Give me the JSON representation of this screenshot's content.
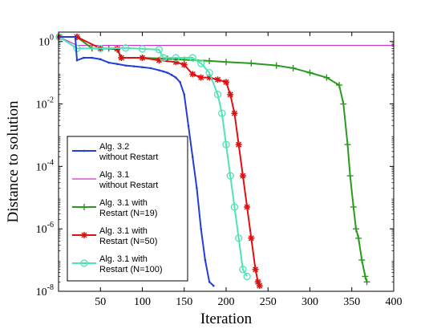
{
  "chart_data": {
    "type": "line",
    "xlabel": "Iteration",
    "ylabel": "Distance to solution",
    "xlim": [
      0,
      400
    ],
    "ylim": [
      1e-08,
      2
    ],
    "yscale": "log",
    "grid": false,
    "legend_position": "bottom-left",
    "x_ticks": [
      {
        "value": 50,
        "label": "50"
      },
      {
        "value": 100,
        "label": "100"
      },
      {
        "value": 150,
        "label": "150"
      },
      {
        "value": 200,
        "label": "200"
      },
      {
        "value": 250,
        "label": "250"
      },
      {
        "value": 300,
        "label": "300"
      },
      {
        "value": 350,
        "label": "350"
      },
      {
        "value": 400,
        "label": "400"
      }
    ],
    "y_ticks": [
      {
        "value": 1,
        "base": "10",
        "exp": "0"
      },
      {
        "value": 0.01,
        "base": "10",
        "exp": "-2"
      },
      {
        "value": 0.0001,
        "base": "10",
        "exp": "-4"
      },
      {
        "value": 1e-06,
        "base": "10",
        "exp": "-6"
      },
      {
        "value": 1e-08,
        "base": "10",
        "exp": "-8"
      }
    ],
    "series": [
      {
        "name_lines": [
          "Alg. 3.2",
          "without Restart"
        ],
        "color": "#1f3fd6",
        "marker": "dot",
        "x": [
          1,
          20,
          22,
          30,
          40,
          50,
          60,
          70,
          80,
          90,
          100,
          110,
          120,
          125,
          130,
          135,
          140,
          145,
          150,
          155,
          160,
          165,
          170,
          175,
          180,
          185
        ],
        "y": [
          1.4,
          1.4,
          0.25,
          0.3,
          0.3,
          0.27,
          0.21,
          0.19,
          0.17,
          0.16,
          0.15,
          0.14,
          0.12,
          0.11,
          0.1,
          0.085,
          0.07,
          0.05,
          0.02,
          0.002,
          0.0002,
          2e-05,
          1e-06,
          1e-07,
          2e-08,
          1.5e-08
        ]
      },
      {
        "name_lines": [
          "Alg. 3.1",
          "without Restart"
        ],
        "color": "#cc33cc",
        "marker": "none",
        "x": [
          1,
          22,
          60,
          100,
          200,
          300,
          400
        ],
        "y": [
          1.4,
          0.75,
          0.75,
          0.75,
          0.75,
          0.75,
          0.75
        ]
      },
      {
        "name_lines": [
          "Alg. 3.1 with",
          "Restart (N=19)"
        ],
        "color": "#2a9a1e",
        "marker": "plus",
        "x": [
          1,
          22,
          40,
          60,
          70,
          75,
          100,
          130,
          150,
          180,
          200,
          230,
          260,
          280,
          300,
          320,
          335,
          340,
          345,
          348,
          352,
          355,
          358,
          362,
          366,
          368
        ],
        "y": [
          1.4,
          1.4,
          0.6,
          0.6,
          0.55,
          0.3,
          0.3,
          0.28,
          0.26,
          0.24,
          0.22,
          0.2,
          0.17,
          0.14,
          0.1,
          0.07,
          0.04,
          0.01,
          0.0005,
          5e-05,
          5e-06,
          1e-06,
          5e-07,
          1e-07,
          3e-08,
          2e-08
        ]
      },
      {
        "name_lines": [
          "Alg. 3.1 with",
          "Restart (N=50)"
        ],
        "color": "#e01010",
        "marker": "star",
        "x": [
          1,
          22,
          50,
          70,
          75,
          100,
          120,
          140,
          150,
          160,
          170,
          180,
          190,
          200,
          205,
          210,
          215,
          220,
          225,
          230,
          235,
          238,
          240
        ],
        "y": [
          1.4,
          1.4,
          0.6,
          0.58,
          0.3,
          0.3,
          0.25,
          0.22,
          0.18,
          0.09,
          0.07,
          0.07,
          0.06,
          0.05,
          0.02,
          0.005,
          0.0005,
          5e-05,
          5e-06,
          5e-07,
          5e-08,
          2e-08,
          1.5e-08
        ]
      },
      {
        "name_lines": [
          "Alg. 3.1 with",
          "Restart (N=100)"
        ],
        "color": "#4fe3b5",
        "marker": "circle",
        "x": [
          1,
          22,
          50,
          80,
          100,
          120,
          125,
          140,
          160,
          170,
          180,
          190,
          195,
          200,
          205,
          210,
          215,
          220,
          225
        ],
        "y": [
          1.4,
          0.6,
          0.6,
          0.62,
          0.58,
          0.55,
          0.3,
          0.3,
          0.3,
          0.2,
          0.1,
          0.02,
          0.005,
          0.0005,
          5e-05,
          5e-06,
          5e-07,
          5e-08,
          3e-08
        ]
      }
    ]
  }
}
